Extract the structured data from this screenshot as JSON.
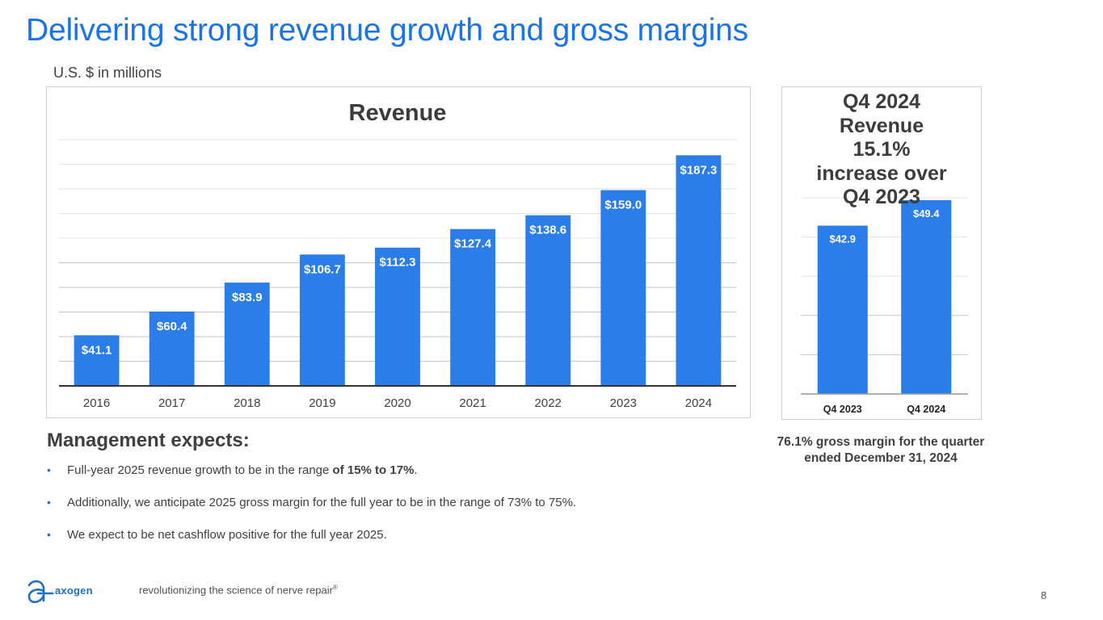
{
  "page": {
    "title": "Delivering strong revenue growth and gross margins",
    "subtitle": "U.S. $ in millions",
    "page_number": "8"
  },
  "colors": {
    "title_blue": "#1a73e8",
    "bar_blue": "#2b7de9",
    "text_dark": "#404040",
    "logo_blue": "#1f6fc5"
  },
  "chart_data": [
    {
      "type": "bar",
      "title": "Revenue",
      "categories": [
        "2016",
        "2017",
        "2018",
        "2019",
        "2020",
        "2021",
        "2022",
        "2023",
        "2024"
      ],
      "values": [
        41.1,
        60.4,
        83.9,
        106.7,
        112.3,
        127.4,
        138.6,
        159.0,
        187.3
      ],
      "data_labels": [
        "$41.1",
        "$60.4",
        "$83.9",
        "$106.7",
        "$112.3",
        "$127.4",
        "$138.6",
        "$159.0",
        "$187.3"
      ],
      "xlabel": "",
      "ylabel": "",
      "ylim": [
        0,
        200
      ],
      "y_gridline_step": 20,
      "y_tick_labels_visible": false,
      "grid": true,
      "legend": "none"
    },
    {
      "type": "bar",
      "title": "Q4 2024 Revenue 15.1% increase over Q4 2023",
      "title_lines": [
        "Q4 2024",
        "Revenue",
        "15.1%",
        "increase over",
        "Q4 2023"
      ],
      "categories": [
        "Q4 2023",
        "Q4 2024"
      ],
      "values": [
        42.9,
        49.4
      ],
      "data_labels": [
        "$42.9",
        "$49.4"
      ],
      "xlabel": "",
      "ylabel": "",
      "ylim": [
        0,
        50
      ],
      "y_gridline_step": 10,
      "y_tick_labels_visible": false,
      "grid": true,
      "legend": "none"
    }
  ],
  "management": {
    "heading": "Management expects:",
    "bullets": [
      {
        "text": "Full-year 2025 revenue growth to be in the range ",
        "bold": "of 15% to 17%",
        "tail": "."
      },
      {
        "text": "Additionally, we anticipate 2025 gross margin for the full year to be in the range of 73% to 75%.",
        "bold": "",
        "tail": ""
      },
      {
        "text": "We expect to be net cashflow positive for the full year 2025.",
        "bold": "",
        "tail": ""
      }
    ],
    "bullet_glyph": "•"
  },
  "margin_note": {
    "line1": "76.1% gross margin for the quarter",
    "line2": "ended December 31, 2024"
  },
  "footer": {
    "logo_text": "axogen",
    "logo_icon": "axogen-logo-icon",
    "tagline": "revolutionizing the science of nerve repair",
    "tagline_mark": "®"
  }
}
